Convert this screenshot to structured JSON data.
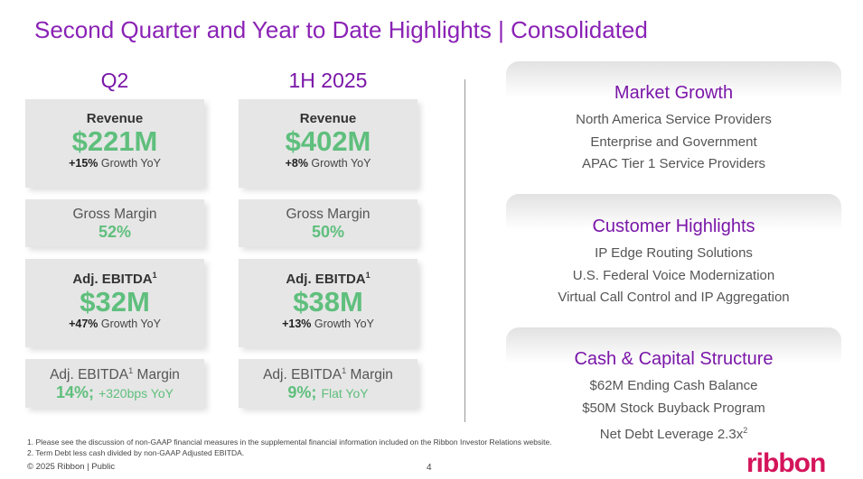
{
  "title": "Second Quarter and Year to Date Highlights | Consolidated",
  "columns": [
    {
      "heading": "Q2",
      "revenue": {
        "label": "Revenue",
        "value": "$221M",
        "growth": "+15%",
        "growth_text": "Growth YoY"
      },
      "gross_margin": {
        "label": "Gross Margin",
        "value": "52%"
      },
      "ebitda": {
        "label": "Adj. EBITDA",
        "sup": "1",
        "value": "$32M",
        "growth": "+47%",
        "growth_text": "Growth YoY"
      },
      "ebitda_margin": {
        "label": "Adj. EBITDA",
        "sup": "1",
        "label_suffix": " Margin",
        "value": "14%;",
        "note": "+320bps YoY"
      }
    },
    {
      "heading": "1H 2025",
      "revenue": {
        "label": "Revenue",
        "value": "$402M",
        "growth": "+8%",
        "growth_text": "Growth YoY"
      },
      "gross_margin": {
        "label": "Gross Margin",
        "value": "50%"
      },
      "ebitda": {
        "label": "Adj. EBITDA",
        "sup": "1",
        "value": "$38M",
        "growth": "+13%",
        "growth_text": "Growth YoY"
      },
      "ebitda_margin": {
        "label": "Adj. EBITDA",
        "sup": "1",
        "label_suffix": " Margin",
        "value": "9%;",
        "note": "Flat YoY"
      }
    }
  ],
  "panels": [
    {
      "heading": "Market Growth",
      "items": [
        "North America Service Providers",
        "Enterprise and Government",
        "APAC Tier 1 Service Providers"
      ]
    },
    {
      "heading": "Customer Highlights",
      "items": [
        "IP Edge Routing Solutions",
        "U.S. Federal Voice Modernization",
        "Virtual Call Control and IP Aggregation"
      ]
    },
    {
      "heading": "Cash & Capital Structure",
      "items": [
        "$62M Ending Cash Balance",
        "$50M Stock Buyback Program",
        "Net Debt Leverage 2.3x"
      ],
      "last_sup": "2"
    }
  ],
  "footnotes": [
    "1.  Please see the discussion of non-GAAP financial measures in the supplemental financial information included on the Ribbon Investor Relations website.",
    "2.  Term Debt less cash divided by non-GAAP Adjusted EBITDA."
  ],
  "copyright": "© 2025 Ribbon | Public",
  "page_number": "4",
  "logo": "ribbon"
}
